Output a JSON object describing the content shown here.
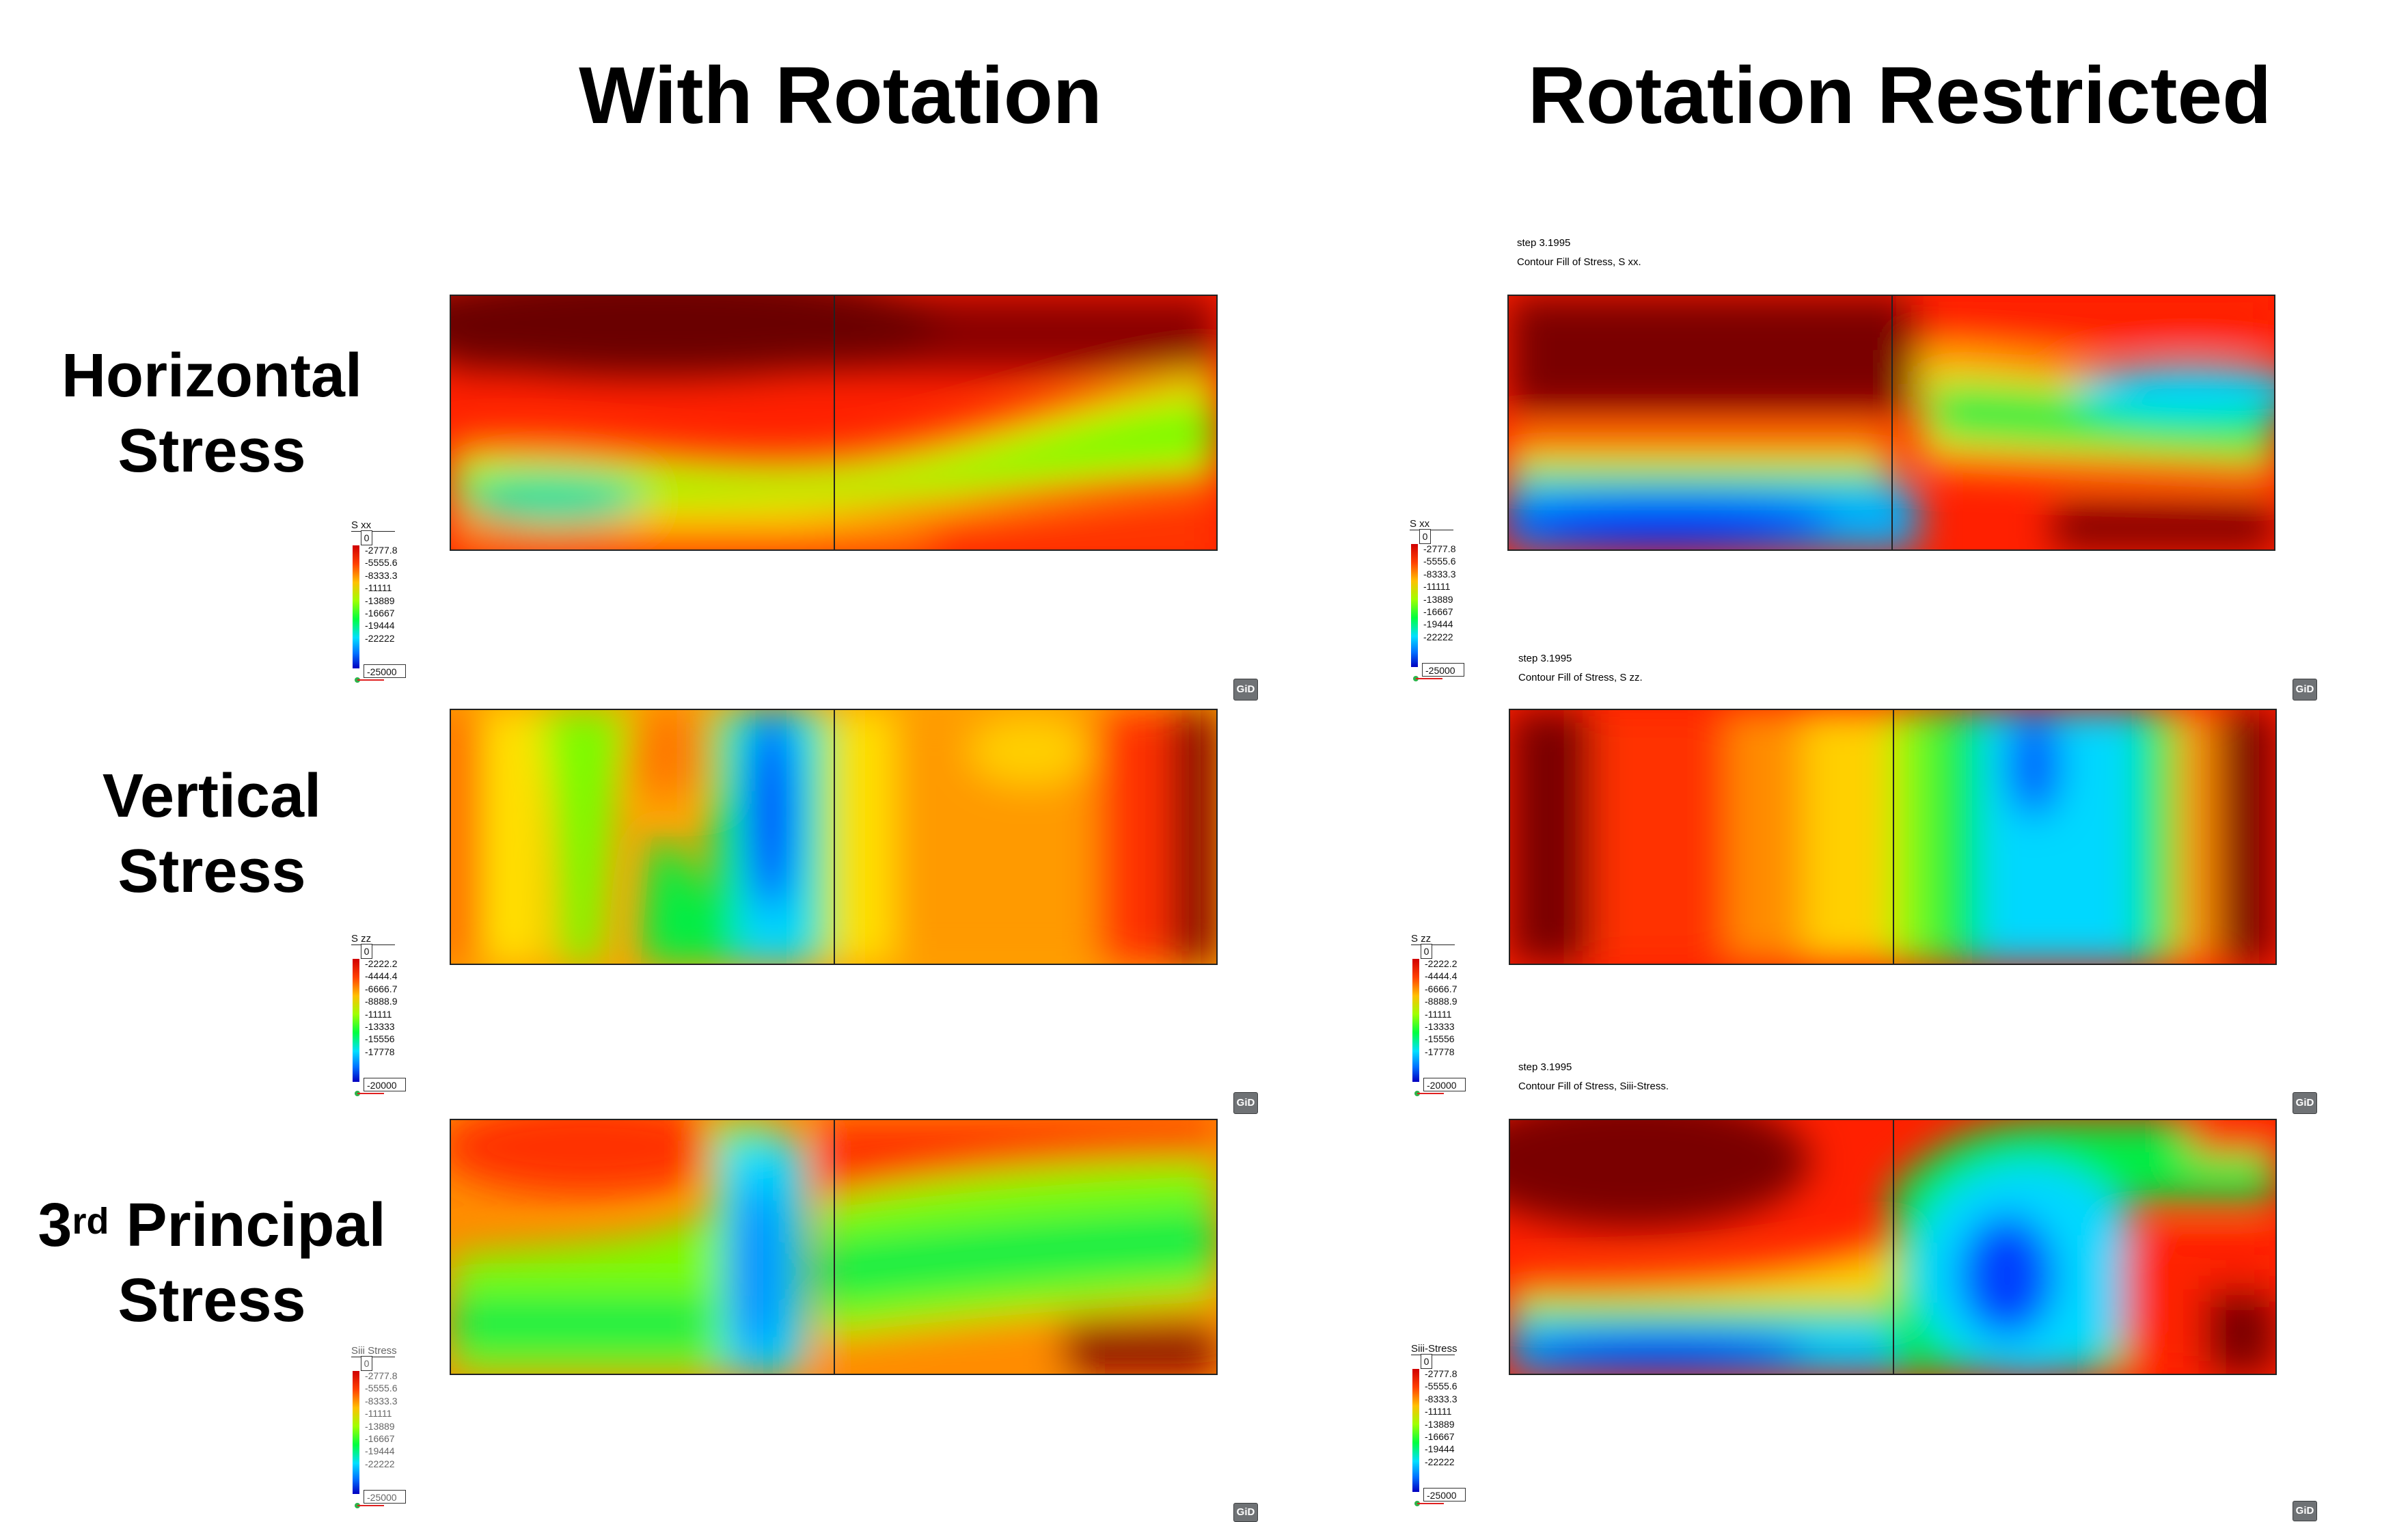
{
  "columns": {
    "left_title": "With Rotation",
    "right_title": "Rotation Restricted"
  },
  "rows": {
    "horizontal": {
      "line1": "Horizontal",
      "line2": "Stress"
    },
    "vertical": {
      "line1": "Vertical",
      "line2": "Stress"
    },
    "principal": {
      "num": "3",
      "sup": "rd",
      "rest": " Principal",
      "line2": "Stress"
    }
  },
  "info": {
    "r1": {
      "step": "step 3.1995",
      "desc": "Contour Fill of Stress, S xx."
    },
    "r2": {
      "step": "step 3.1995",
      "desc": "Contour Fill of Stress, S zz."
    },
    "r3": {
      "step": "step 3.1995",
      "desc": "Contour Fill of Stress, Siii-Stress."
    }
  },
  "legends": {
    "sxx": {
      "title": "S xx",
      "top": "0",
      "ticks": [
        "-2777.8",
        "-5555.6",
        "-8333.3",
        "-11111",
        "-13889",
        "-16667",
        "-19444",
        "-22222"
      ],
      "bottom": "-25000"
    },
    "szz": {
      "title": "S zz",
      "top": "0",
      "ticks": [
        "-2222.2",
        "-4444.4",
        "-6666.7",
        "-8888.9",
        "-11111",
        "-13333",
        "-15556",
        "-17778"
      ],
      "bottom": "-20000"
    },
    "siii_left": {
      "title": "Siii Stress",
      "top": "0",
      "ticks": [
        "-2777.8",
        "-5555.6",
        "-8333.3",
        "-11111",
        "-13889",
        "-16667",
        "-19444",
        "-22222"
      ],
      "bottom": "-25000"
    },
    "siii_right": {
      "title": "Siii-Stress",
      "top": "0",
      "ticks": [
        "-2777.8",
        "-5555.6",
        "-8333.3",
        "-11111",
        "-13889",
        "-16667",
        "-19444",
        "-22222"
      ],
      "bottom": "-25000"
    }
  },
  "gid_label": "GiD",
  "colors": {
    "scale": [
      "#7a0000",
      "#ff0000",
      "#ff8c00",
      "#ffd000",
      "#7cfc00",
      "#00ee44",
      "#00d8ff",
      "#0050ff",
      "#0000b0"
    ]
  }
}
